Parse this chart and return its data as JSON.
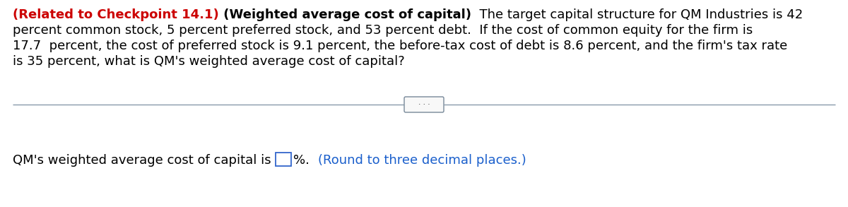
{
  "line1_red": "(Related to Checkpoint 14.1)",
  "line1_bold": " (Weighted average cost of capital)",
  "line1_normal": "  The target capital structure for QM Industries is 42",
  "line2": "percent common stock, 5 percent preferred stock, and 53 percent debt.  If the cost of common equity for the firm is",
  "line3": "17.7  percent, the cost of preferred stock is 9.1 percent, the before-tax cost of debt is 8.6 percent, and the firm's tax rate",
  "line4": "is 35 percent, what is QM's weighted average cost of capital?",
  "bottom_normal": "QM's weighted average cost of capital is ",
  "bottom_pct": "%.  ",
  "bottom_blue": "(Round to three decimal places.)",
  "background_color": "#ffffff",
  "text_color": "#000000",
  "red_color": "#cc0000",
  "blue_color": "#1a5fcc",
  "sep_color": "#8899aa",
  "box_color": "#3366cc",
  "font_size": 13.0,
  "fig_width": 12.0,
  "fig_height": 2.93,
  "dpi": 100
}
